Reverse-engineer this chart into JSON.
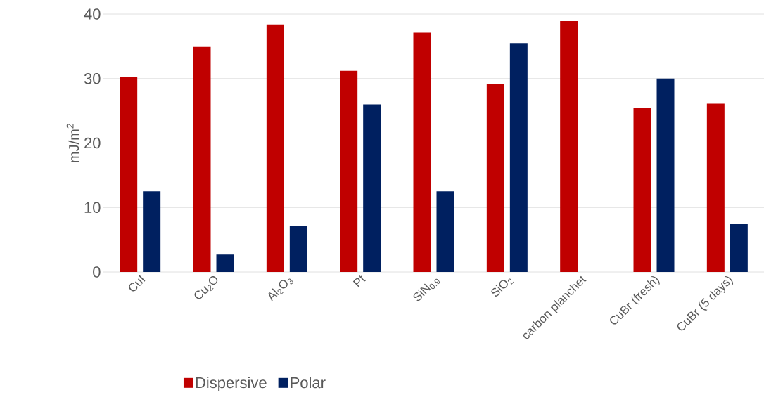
{
  "chart_data": {
    "type": "bar",
    "ylabel": "mJ/m$^{2}$",
    "categories": [
      "CuI",
      "Cu$_{2}$O",
      "Al$_{2}$O$_{3}$",
      "Pt",
      "SiN$_{0.9}$",
      "SiO$_{2}$",
      "carbon planchet",
      "CuBr (fresh)",
      "CuBr (5 days)"
    ],
    "series": [
      {
        "name": "Dispersive",
        "color": "#c00000",
        "values": [
          30.3,
          34.9,
          38.4,
          31.2,
          37.1,
          29.2,
          38.9,
          25.5,
          26.1
        ]
      },
      {
        "name": "Polar",
        "color": "#002060",
        "values": [
          12.5,
          2.7,
          7.1,
          26.0,
          12.5,
          35.5,
          null,
          30.0,
          7.4
        ]
      }
    ],
    "ylim": [
      0,
      40
    ],
    "yticks": [
      0,
      10,
      20,
      30,
      40
    ],
    "grid": "y",
    "legend": "bottom"
  }
}
